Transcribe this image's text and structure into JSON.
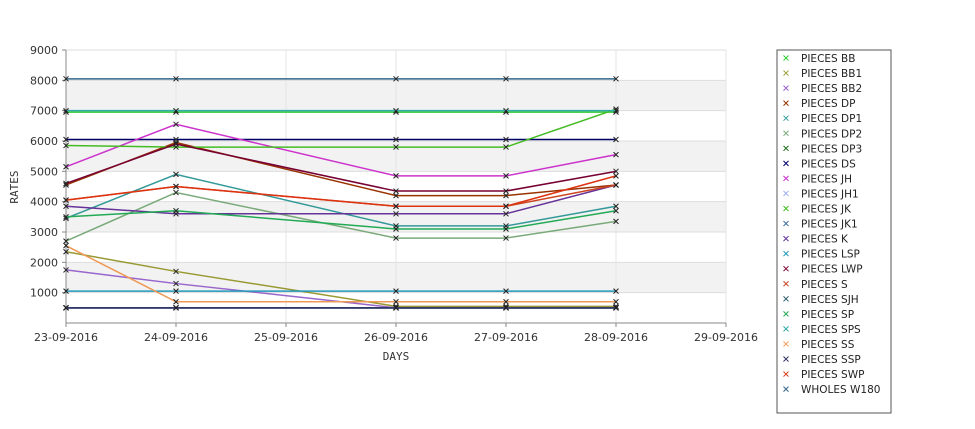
{
  "chart_data": {
    "type": "line",
    "title": "",
    "xlabel": "DAYS",
    "ylabel": "RATES",
    "x_ticks": [
      "23-09-2016",
      "24-09-2016",
      "25-09-2016",
      "26-09-2016",
      "27-09-2016",
      "28-09-2016",
      "29-09-2016"
    ],
    "ylim": [
      0,
      9000
    ],
    "y_ticks": [
      1000,
      2000,
      3000,
      4000,
      5000,
      6000,
      7000,
      8000,
      9000
    ],
    "grid": true,
    "legend_position": "right",
    "series": [
      {
        "name": "PIECES BB",
        "color": "#33cc33",
        "points": [
          [
            "23-09-2016",
            6950
          ],
          [
            "24-09-2016",
            6950
          ],
          [
            "26-09-2016",
            6950
          ],
          [
            "27-09-2016",
            6950
          ],
          [
            "28-09-2016",
            6950
          ]
        ]
      },
      {
        "name": "PIECES BB1",
        "color": "#999933",
        "points": [
          [
            "23-09-2016",
            2350
          ],
          [
            "24-09-2016",
            1700
          ],
          [
            "26-09-2016",
            550
          ],
          [
            "27-09-2016",
            550
          ],
          [
            "28-09-2016",
            550
          ]
        ]
      },
      {
        "name": "PIECES BB2",
        "color": "#9966cc",
        "points": [
          [
            "23-09-2016",
            1750
          ],
          [
            "24-09-2016",
            1300
          ],
          [
            "26-09-2016",
            500
          ],
          [
            "27-09-2016",
            500
          ],
          [
            "28-09-2016",
            500
          ]
        ]
      },
      {
        "name": "PIECES DP",
        "color": "#993300",
        "points": [
          [
            "23-09-2016",
            4550
          ],
          [
            "24-09-2016",
            5950
          ],
          [
            "26-09-2016",
            4200
          ],
          [
            "27-09-2016",
            4200
          ],
          [
            "28-09-2016",
            4550
          ]
        ]
      },
      {
        "name": "PIECES DP1",
        "color": "#339999",
        "points": [
          [
            "23-09-2016",
            3450
          ],
          [
            "24-09-2016",
            4900
          ],
          [
            "26-09-2016",
            3200
          ],
          [
            "27-09-2016",
            3200
          ],
          [
            "28-09-2016",
            3850
          ]
        ]
      },
      {
        "name": "PIECES DP2",
        "color": "#7aaa7a",
        "points": [
          [
            "23-09-2016",
            2700
          ],
          [
            "24-09-2016",
            4300
          ],
          [
            "26-09-2016",
            2800
          ],
          [
            "27-09-2016",
            2800
          ],
          [
            "28-09-2016",
            3350
          ]
        ]
      },
      {
        "name": "PIECES DP3",
        "color": "#116611",
        "points": [
          [
            "23-09-2016",
            500
          ],
          [
            "24-09-2016",
            500
          ],
          [
            "26-09-2016",
            500
          ],
          [
            "27-09-2016",
            500
          ],
          [
            "28-09-2016",
            500
          ]
        ]
      },
      {
        "name": "PIECES DS",
        "color": "#000066",
        "points": [
          [
            "23-09-2016",
            6050
          ],
          [
            "24-09-2016",
            6050
          ],
          [
            "26-09-2016",
            6050
          ],
          [
            "27-09-2016",
            6050
          ],
          [
            "28-09-2016",
            6050
          ]
        ]
      },
      {
        "name": "PIECES JH",
        "color": "#cc33cc",
        "points": [
          [
            "23-09-2016",
            5150
          ],
          [
            "24-09-2016",
            6550
          ],
          [
            "26-09-2016",
            4850
          ],
          [
            "27-09-2016",
            4850
          ],
          [
            "28-09-2016",
            5550
          ]
        ]
      },
      {
        "name": "PIECES JH1",
        "color": "#99aaee",
        "points": [
          [
            "23-09-2016",
            500
          ],
          [
            "24-09-2016",
            500
          ],
          [
            "26-09-2016",
            500
          ],
          [
            "27-09-2016",
            500
          ],
          [
            "28-09-2016",
            500
          ]
        ]
      },
      {
        "name": "PIECES JK",
        "color": "#44bb22",
        "points": [
          [
            "23-09-2016",
            5850
          ],
          [
            "24-09-2016",
            5800
          ],
          [
            "26-09-2016",
            5800
          ],
          [
            "27-09-2016",
            5800
          ],
          [
            "28-09-2016",
            7050
          ]
        ]
      },
      {
        "name": "PIECES JK1",
        "color": "#336699",
        "points": [
          [
            "23-09-2016",
            500
          ],
          [
            "24-09-2016",
            500
          ],
          [
            "26-09-2016",
            500
          ],
          [
            "27-09-2016",
            500
          ],
          [
            "28-09-2016",
            500
          ]
        ]
      },
      {
        "name": "PIECES K",
        "color": "#663399",
        "points": [
          [
            "23-09-2016",
            3850
          ],
          [
            "24-09-2016",
            3600
          ],
          [
            "26-09-2016",
            3600
          ],
          [
            "27-09-2016",
            3600
          ],
          [
            "28-09-2016",
            4550
          ]
        ]
      },
      {
        "name": "PIECES LSP",
        "color": "#2299bb",
        "points": [
          [
            "23-09-2016",
            1050
          ],
          [
            "24-09-2016",
            1050
          ],
          [
            "26-09-2016",
            1050
          ],
          [
            "27-09-2016",
            1050
          ],
          [
            "28-09-2016",
            1050
          ]
        ]
      },
      {
        "name": "PIECES LWP",
        "color": "#770033",
        "points": [
          [
            "23-09-2016",
            4600
          ],
          [
            "24-09-2016",
            5900
          ],
          [
            "26-09-2016",
            4350
          ],
          [
            "27-09-2016",
            4350
          ],
          [
            "28-09-2016",
            5000
          ]
        ]
      },
      {
        "name": "PIECES S",
        "color": "#cc4422",
        "points": [
          [
            "23-09-2016",
            4050
          ],
          [
            "24-09-2016",
            4500
          ],
          [
            "26-09-2016",
            3850
          ],
          [
            "27-09-2016",
            3850
          ],
          [
            "28-09-2016",
            4550
          ]
        ]
      },
      {
        "name": "PIECES SJH",
        "color": "#225566",
        "points": [
          [
            "23-09-2016",
            500
          ],
          [
            "24-09-2016",
            500
          ],
          [
            "26-09-2016",
            500
          ],
          [
            "27-09-2016",
            500
          ],
          [
            "28-09-2016",
            500
          ]
        ]
      },
      {
        "name": "PIECES SP",
        "color": "#22aa55",
        "points": [
          [
            "23-09-2016",
            3500
          ],
          [
            "24-09-2016",
            3700
          ],
          [
            "26-09-2016",
            3100
          ],
          [
            "27-09-2016",
            3100
          ],
          [
            "28-09-2016",
            3700
          ]
        ]
      },
      {
        "name": "PIECES SPS",
        "color": "#33aaaa",
        "points": [
          [
            "23-09-2016",
            7000
          ],
          [
            "24-09-2016",
            7000
          ],
          [
            "26-09-2016",
            7000
          ],
          [
            "27-09-2016",
            7000
          ],
          [
            "28-09-2016",
            7000
          ]
        ]
      },
      {
        "name": "PIECES SS",
        "color": "#ee9955",
        "points": [
          [
            "23-09-2016",
            2550
          ],
          [
            "24-09-2016",
            700
          ],
          [
            "26-09-2016",
            700
          ],
          [
            "27-09-2016",
            700
          ],
          [
            "28-09-2016",
            700
          ]
        ]
      },
      {
        "name": "PIECES SSP",
        "color": "#333366",
        "points": [
          [
            "23-09-2016",
            500
          ],
          [
            "24-09-2016",
            500
          ],
          [
            "26-09-2016",
            500
          ],
          [
            "27-09-2016",
            500
          ],
          [
            "28-09-2016",
            500
          ]
        ]
      },
      {
        "name": "PIECES SWP",
        "color": "#dd3311",
        "points": [
          [
            "23-09-2016",
            4050
          ],
          [
            "24-09-2016",
            4500
          ],
          [
            "26-09-2016",
            3850
          ],
          [
            "27-09-2016",
            3850
          ],
          [
            "28-09-2016",
            4850
          ]
        ]
      },
      {
        "name": "WHOLES W180",
        "color": "#336688",
        "points": [
          [
            "23-09-2016",
            8050
          ],
          [
            "24-09-2016",
            8050
          ],
          [
            "26-09-2016",
            8050
          ],
          [
            "27-09-2016",
            8050
          ],
          [
            "28-09-2016",
            8050
          ]
        ]
      }
    ]
  }
}
